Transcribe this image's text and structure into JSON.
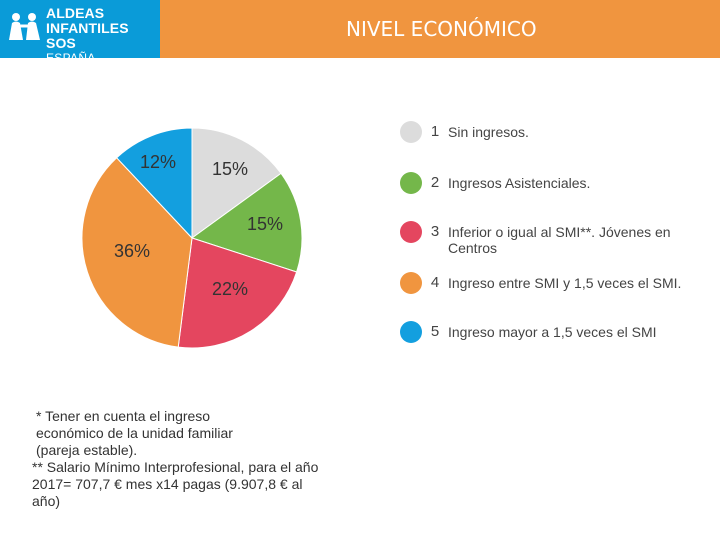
{
  "header": {
    "logo_lines": [
      "ALDEAS",
      "INFANTILES SOS",
      "ESPAÑA"
    ],
    "logo_icon": "sos-children-icon",
    "title": "NIVEL ECONÓMICO"
  },
  "colors": {
    "logo_bg": "#0a9bd8",
    "title_bg": "#f0953f"
  },
  "chart_data": {
    "type": "pie",
    "slices": [
      {
        "id": "1",
        "label": "Sin ingresos.",
        "value": 15,
        "display": "15%",
        "color": "#dcdcdc"
      },
      {
        "id": "2",
        "label": "Ingresos Asistenciales.",
        "value": 15,
        "display": "15%",
        "color": "#74b74a"
      },
      {
        "id": "3",
        "label": "Inferior o igual al SMI**. Jóvenes en Centros",
        "value": 22,
        "display": "22%",
        "color": "#e4465f"
      },
      {
        "id": "4",
        "label": "Ingreso entre SMI y 1,5 veces el SMI.",
        "value": 36,
        "display": "36%",
        "color": "#f0953f"
      },
      {
        "id": "5",
        "label": "Ingreso mayor a 1,5 veces el SMI",
        "value": 12,
        "display": "12%",
        "color": "#139fdf"
      }
    ],
    "start": "top",
    "direction": "clockwise",
    "legend_position": "right"
  },
  "footnotes": {
    "note1": "* Tener en cuenta el ingreso económico de la unidad familiar (pareja estable).",
    "note2": "** Salario Mínimo Interprofesional, para el año 2017= 707,7 € mes x14 pagas (9.907,8 € al año)"
  }
}
